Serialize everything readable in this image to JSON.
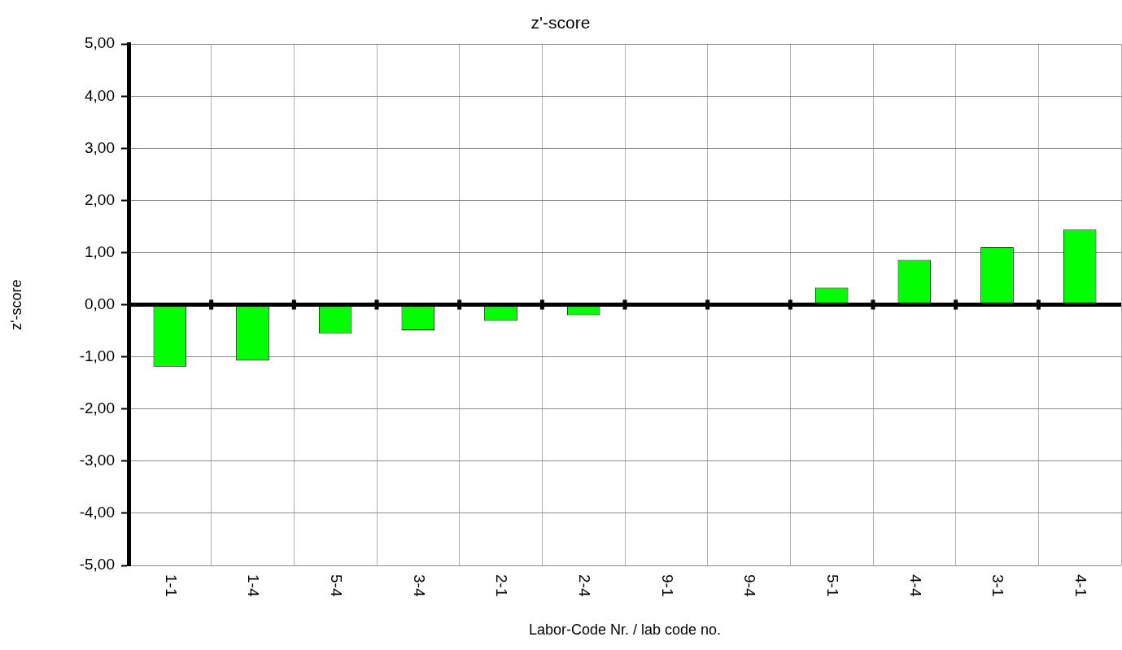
{
  "chart_data": {
    "type": "bar",
    "title": "z'-score",
    "xlabel": "Labor-Code Nr. / lab code no.",
    "ylabel": "z'-score",
    "categories": [
      "1-1",
      "1-4",
      "5-4",
      "3-4",
      "2-1",
      "2-4",
      "9-1",
      "9-4",
      "5-1",
      "4-4",
      "3-1",
      "4-1"
    ],
    "values": [
      -1.19,
      -1.07,
      -0.55,
      -0.49,
      -0.31,
      -0.2,
      null,
      null,
      0.33,
      0.86,
      1.1,
      1.44
    ],
    "color": "#00ff00",
    "ylim": [
      -5,
      5
    ],
    "yticks": [
      {
        "value": -5,
        "label": "-5,00"
      },
      {
        "value": -4,
        "label": "-4,00"
      },
      {
        "value": -3,
        "label": "-3,00"
      },
      {
        "value": -2,
        "label": "-2,00"
      },
      {
        "value": -1,
        "label": "-1,00"
      },
      {
        "value": 0,
        "label": "0,00"
      },
      {
        "value": 1,
        "label": "1,00"
      },
      {
        "value": 2,
        "label": "2,00"
      },
      {
        "value": 3,
        "label": "3,00"
      },
      {
        "value": 4,
        "label": "4,00"
      },
      {
        "value": 5,
        "label": "5,00"
      }
    ],
    "grid": true
  }
}
